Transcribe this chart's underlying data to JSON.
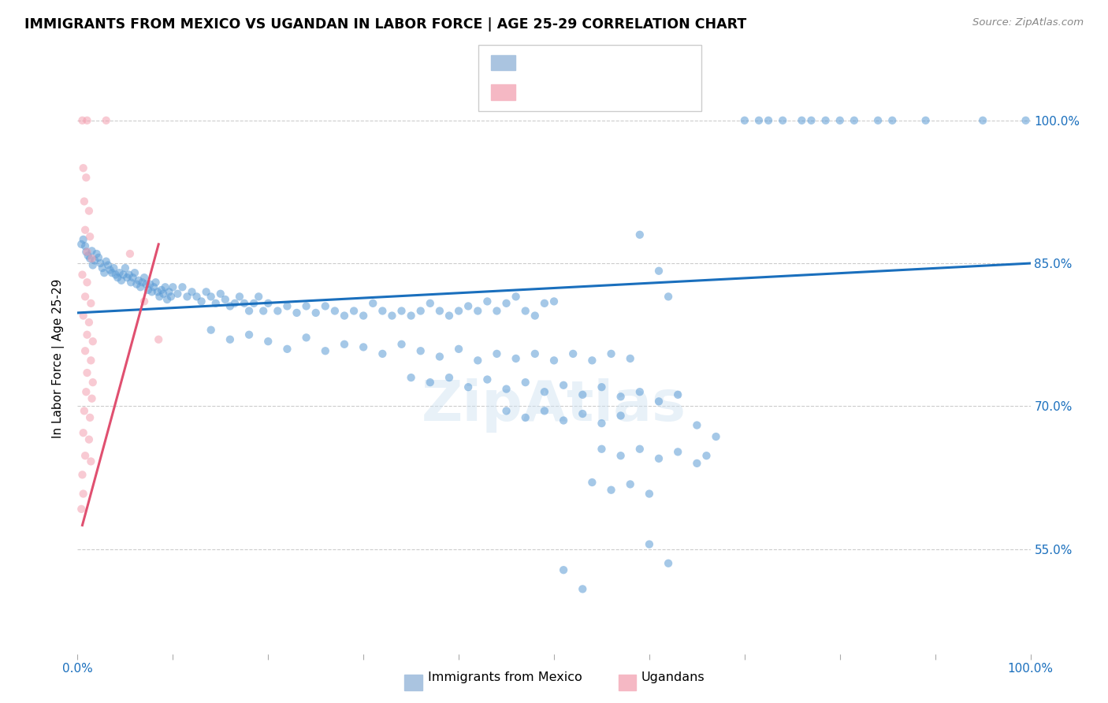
{
  "title": "IMMIGRANTS FROM MEXICO VS UGANDAN IN LABOR FORCE | AGE 25-29 CORRELATION CHART",
  "source": "Source: ZipAtlas.com",
  "ylabel": "In Labor Force | Age 25-29",
  "ytick_labels": [
    "100.0%",
    "85.0%",
    "70.0%",
    "55.0%"
  ],
  "ytick_values": [
    1.0,
    0.85,
    0.7,
    0.55
  ],
  "xlim": [
    0.0,
    1.0
  ],
  "ylim": [
    0.44,
    1.06
  ],
  "blue_scatter": [
    [
      0.004,
      0.87
    ],
    [
      0.006,
      0.875
    ],
    [
      0.008,
      0.868
    ],
    [
      0.009,
      0.862
    ],
    [
      0.011,
      0.858
    ],
    [
      0.013,
      0.855
    ],
    [
      0.015,
      0.863
    ],
    [
      0.016,
      0.848
    ],
    [
      0.018,
      0.853
    ],
    [
      0.02,
      0.86
    ],
    [
      0.022,
      0.856
    ],
    [
      0.024,
      0.85
    ],
    [
      0.026,
      0.845
    ],
    [
      0.028,
      0.84
    ],
    [
      0.03,
      0.852
    ],
    [
      0.032,
      0.848
    ],
    [
      0.034,
      0.843
    ],
    [
      0.036,
      0.84
    ],
    [
      0.038,
      0.845
    ],
    [
      0.04,
      0.838
    ],
    [
      0.042,
      0.835
    ],
    [
      0.044,
      0.84
    ],
    [
      0.046,
      0.832
    ],
    [
      0.048,
      0.838
    ],
    [
      0.05,
      0.845
    ],
    [
      0.052,
      0.835
    ],
    [
      0.054,
      0.838
    ],
    [
      0.056,
      0.83
    ],
    [
      0.058,
      0.835
    ],
    [
      0.06,
      0.84
    ],
    [
      0.062,
      0.828
    ],
    [
      0.064,
      0.832
    ],
    [
      0.066,
      0.825
    ],
    [
      0.068,
      0.83
    ],
    [
      0.07,
      0.835
    ],
    [
      0.072,
      0.828
    ],
    [
      0.074,
      0.822
    ],
    [
      0.076,
      0.828
    ],
    [
      0.078,
      0.82
    ],
    [
      0.08,
      0.825
    ],
    [
      0.082,
      0.83
    ],
    [
      0.084,
      0.82
    ],
    [
      0.086,
      0.815
    ],
    [
      0.088,
      0.822
    ],
    [
      0.09,
      0.818
    ],
    [
      0.092,
      0.825
    ],
    [
      0.094,
      0.812
    ],
    [
      0.096,
      0.82
    ],
    [
      0.098,
      0.815
    ],
    [
      0.1,
      0.825
    ],
    [
      0.105,
      0.818
    ],
    [
      0.11,
      0.825
    ],
    [
      0.115,
      0.815
    ],
    [
      0.12,
      0.82
    ],
    [
      0.125,
      0.815
    ],
    [
      0.13,
      0.81
    ],
    [
      0.135,
      0.82
    ],
    [
      0.14,
      0.815
    ],
    [
      0.145,
      0.808
    ],
    [
      0.15,
      0.818
    ],
    [
      0.155,
      0.812
    ],
    [
      0.16,
      0.805
    ],
    [
      0.165,
      0.808
    ],
    [
      0.17,
      0.815
    ],
    [
      0.175,
      0.808
    ],
    [
      0.18,
      0.8
    ],
    [
      0.185,
      0.808
    ],
    [
      0.19,
      0.815
    ],
    [
      0.195,
      0.8
    ],
    [
      0.2,
      0.808
    ],
    [
      0.21,
      0.8
    ],
    [
      0.22,
      0.805
    ],
    [
      0.23,
      0.798
    ],
    [
      0.24,
      0.805
    ],
    [
      0.25,
      0.798
    ],
    [
      0.26,
      0.805
    ],
    [
      0.27,
      0.8
    ],
    [
      0.28,
      0.795
    ],
    [
      0.29,
      0.8
    ],
    [
      0.3,
      0.795
    ],
    [
      0.31,
      0.808
    ],
    [
      0.32,
      0.8
    ],
    [
      0.33,
      0.795
    ],
    [
      0.34,
      0.8
    ],
    [
      0.35,
      0.795
    ],
    [
      0.36,
      0.8
    ],
    [
      0.37,
      0.808
    ],
    [
      0.38,
      0.8
    ],
    [
      0.39,
      0.795
    ],
    [
      0.4,
      0.8
    ],
    [
      0.41,
      0.805
    ],
    [
      0.42,
      0.8
    ],
    [
      0.43,
      0.81
    ],
    [
      0.44,
      0.8
    ],
    [
      0.45,
      0.808
    ],
    [
      0.46,
      0.815
    ],
    [
      0.47,
      0.8
    ],
    [
      0.48,
      0.795
    ],
    [
      0.49,
      0.808
    ],
    [
      0.5,
      0.81
    ],
    [
      0.14,
      0.78
    ],
    [
      0.16,
      0.77
    ],
    [
      0.18,
      0.775
    ],
    [
      0.2,
      0.768
    ],
    [
      0.22,
      0.76
    ],
    [
      0.24,
      0.772
    ],
    [
      0.26,
      0.758
    ],
    [
      0.28,
      0.765
    ],
    [
      0.3,
      0.762
    ],
    [
      0.32,
      0.755
    ],
    [
      0.34,
      0.765
    ],
    [
      0.36,
      0.758
    ],
    [
      0.38,
      0.752
    ],
    [
      0.4,
      0.76
    ],
    [
      0.42,
      0.748
    ],
    [
      0.44,
      0.755
    ],
    [
      0.46,
      0.75
    ],
    [
      0.48,
      0.755
    ],
    [
      0.5,
      0.748
    ],
    [
      0.52,
      0.755
    ],
    [
      0.54,
      0.748
    ],
    [
      0.56,
      0.755
    ],
    [
      0.58,
      0.75
    ],
    [
      0.35,
      0.73
    ],
    [
      0.37,
      0.725
    ],
    [
      0.39,
      0.73
    ],
    [
      0.41,
      0.72
    ],
    [
      0.43,
      0.728
    ],
    [
      0.45,
      0.718
    ],
    [
      0.47,
      0.725
    ],
    [
      0.49,
      0.715
    ],
    [
      0.51,
      0.722
    ],
    [
      0.53,
      0.712
    ],
    [
      0.55,
      0.72
    ],
    [
      0.57,
      0.71
    ],
    [
      0.59,
      0.715
    ],
    [
      0.61,
      0.705
    ],
    [
      0.63,
      0.712
    ],
    [
      0.45,
      0.695
    ],
    [
      0.47,
      0.688
    ],
    [
      0.49,
      0.695
    ],
    [
      0.51,
      0.685
    ],
    [
      0.53,
      0.692
    ],
    [
      0.55,
      0.682
    ],
    [
      0.57,
      0.69
    ],
    [
      0.59,
      0.88
    ],
    [
      0.61,
      0.842
    ],
    [
      0.62,
      0.815
    ],
    [
      0.55,
      0.655
    ],
    [
      0.57,
      0.648
    ],
    [
      0.59,
      0.655
    ],
    [
      0.61,
      0.645
    ],
    [
      0.63,
      0.652
    ],
    [
      0.65,
      0.64
    ],
    [
      0.66,
      0.648
    ],
    [
      0.54,
      0.62
    ],
    [
      0.56,
      0.612
    ],
    [
      0.58,
      0.618
    ],
    [
      0.6,
      0.608
    ],
    [
      0.7,
      1.0
    ],
    [
      0.715,
      1.0
    ],
    [
      0.725,
      1.0
    ],
    [
      0.74,
      1.0
    ],
    [
      0.76,
      1.0
    ],
    [
      0.77,
      1.0
    ],
    [
      0.785,
      1.0
    ],
    [
      0.8,
      1.0
    ],
    [
      0.815,
      1.0
    ],
    [
      0.84,
      1.0
    ],
    [
      0.855,
      1.0
    ],
    [
      0.89,
      1.0
    ],
    [
      0.95,
      1.0
    ],
    [
      0.995,
      1.0
    ],
    [
      0.51,
      0.528
    ],
    [
      0.53,
      0.508
    ],
    [
      0.6,
      0.555
    ],
    [
      0.62,
      0.535
    ],
    [
      0.65,
      0.68
    ],
    [
      0.67,
      0.668
    ]
  ],
  "pink_scatter": [
    [
      0.005,
      1.0
    ],
    [
      0.01,
      1.0
    ],
    [
      0.03,
      1.0
    ],
    [
      0.006,
      0.95
    ],
    [
      0.009,
      0.94
    ],
    [
      0.007,
      0.915
    ],
    [
      0.012,
      0.905
    ],
    [
      0.008,
      0.885
    ],
    [
      0.013,
      0.878
    ],
    [
      0.01,
      0.862
    ],
    [
      0.015,
      0.855
    ],
    [
      0.005,
      0.838
    ],
    [
      0.01,
      0.83
    ],
    [
      0.008,
      0.815
    ],
    [
      0.014,
      0.808
    ],
    [
      0.006,
      0.795
    ],
    [
      0.012,
      0.788
    ],
    [
      0.01,
      0.775
    ],
    [
      0.016,
      0.768
    ],
    [
      0.008,
      0.758
    ],
    [
      0.014,
      0.748
    ],
    [
      0.01,
      0.735
    ],
    [
      0.016,
      0.725
    ],
    [
      0.009,
      0.715
    ],
    [
      0.015,
      0.708
    ],
    [
      0.007,
      0.695
    ],
    [
      0.013,
      0.688
    ],
    [
      0.006,
      0.672
    ],
    [
      0.012,
      0.665
    ],
    [
      0.008,
      0.648
    ],
    [
      0.014,
      0.642
    ],
    [
      0.005,
      0.628
    ],
    [
      0.006,
      0.608
    ],
    [
      0.004,
      0.592
    ],
    [
      0.055,
      0.86
    ],
    [
      0.07,
      0.81
    ],
    [
      0.085,
      0.77
    ]
  ],
  "blue_line": {
    "x0": 0.0,
    "y0": 0.798,
    "x1": 1.0,
    "y1": 0.85
  },
  "pink_line": {
    "x0": 0.005,
    "y0": 0.575,
    "x1": 0.085,
    "y1": 0.87
  },
  "blue_color": "#5b9bd5",
  "pink_color": "#f4a0b0",
  "blue_line_color": "#1a6fbd",
  "pink_line_color": "#e05070",
  "scatter_size": 55,
  "alpha": 0.55,
  "blue_legend_color": "#aac4e0",
  "pink_legend_color": "#f5b8c4"
}
